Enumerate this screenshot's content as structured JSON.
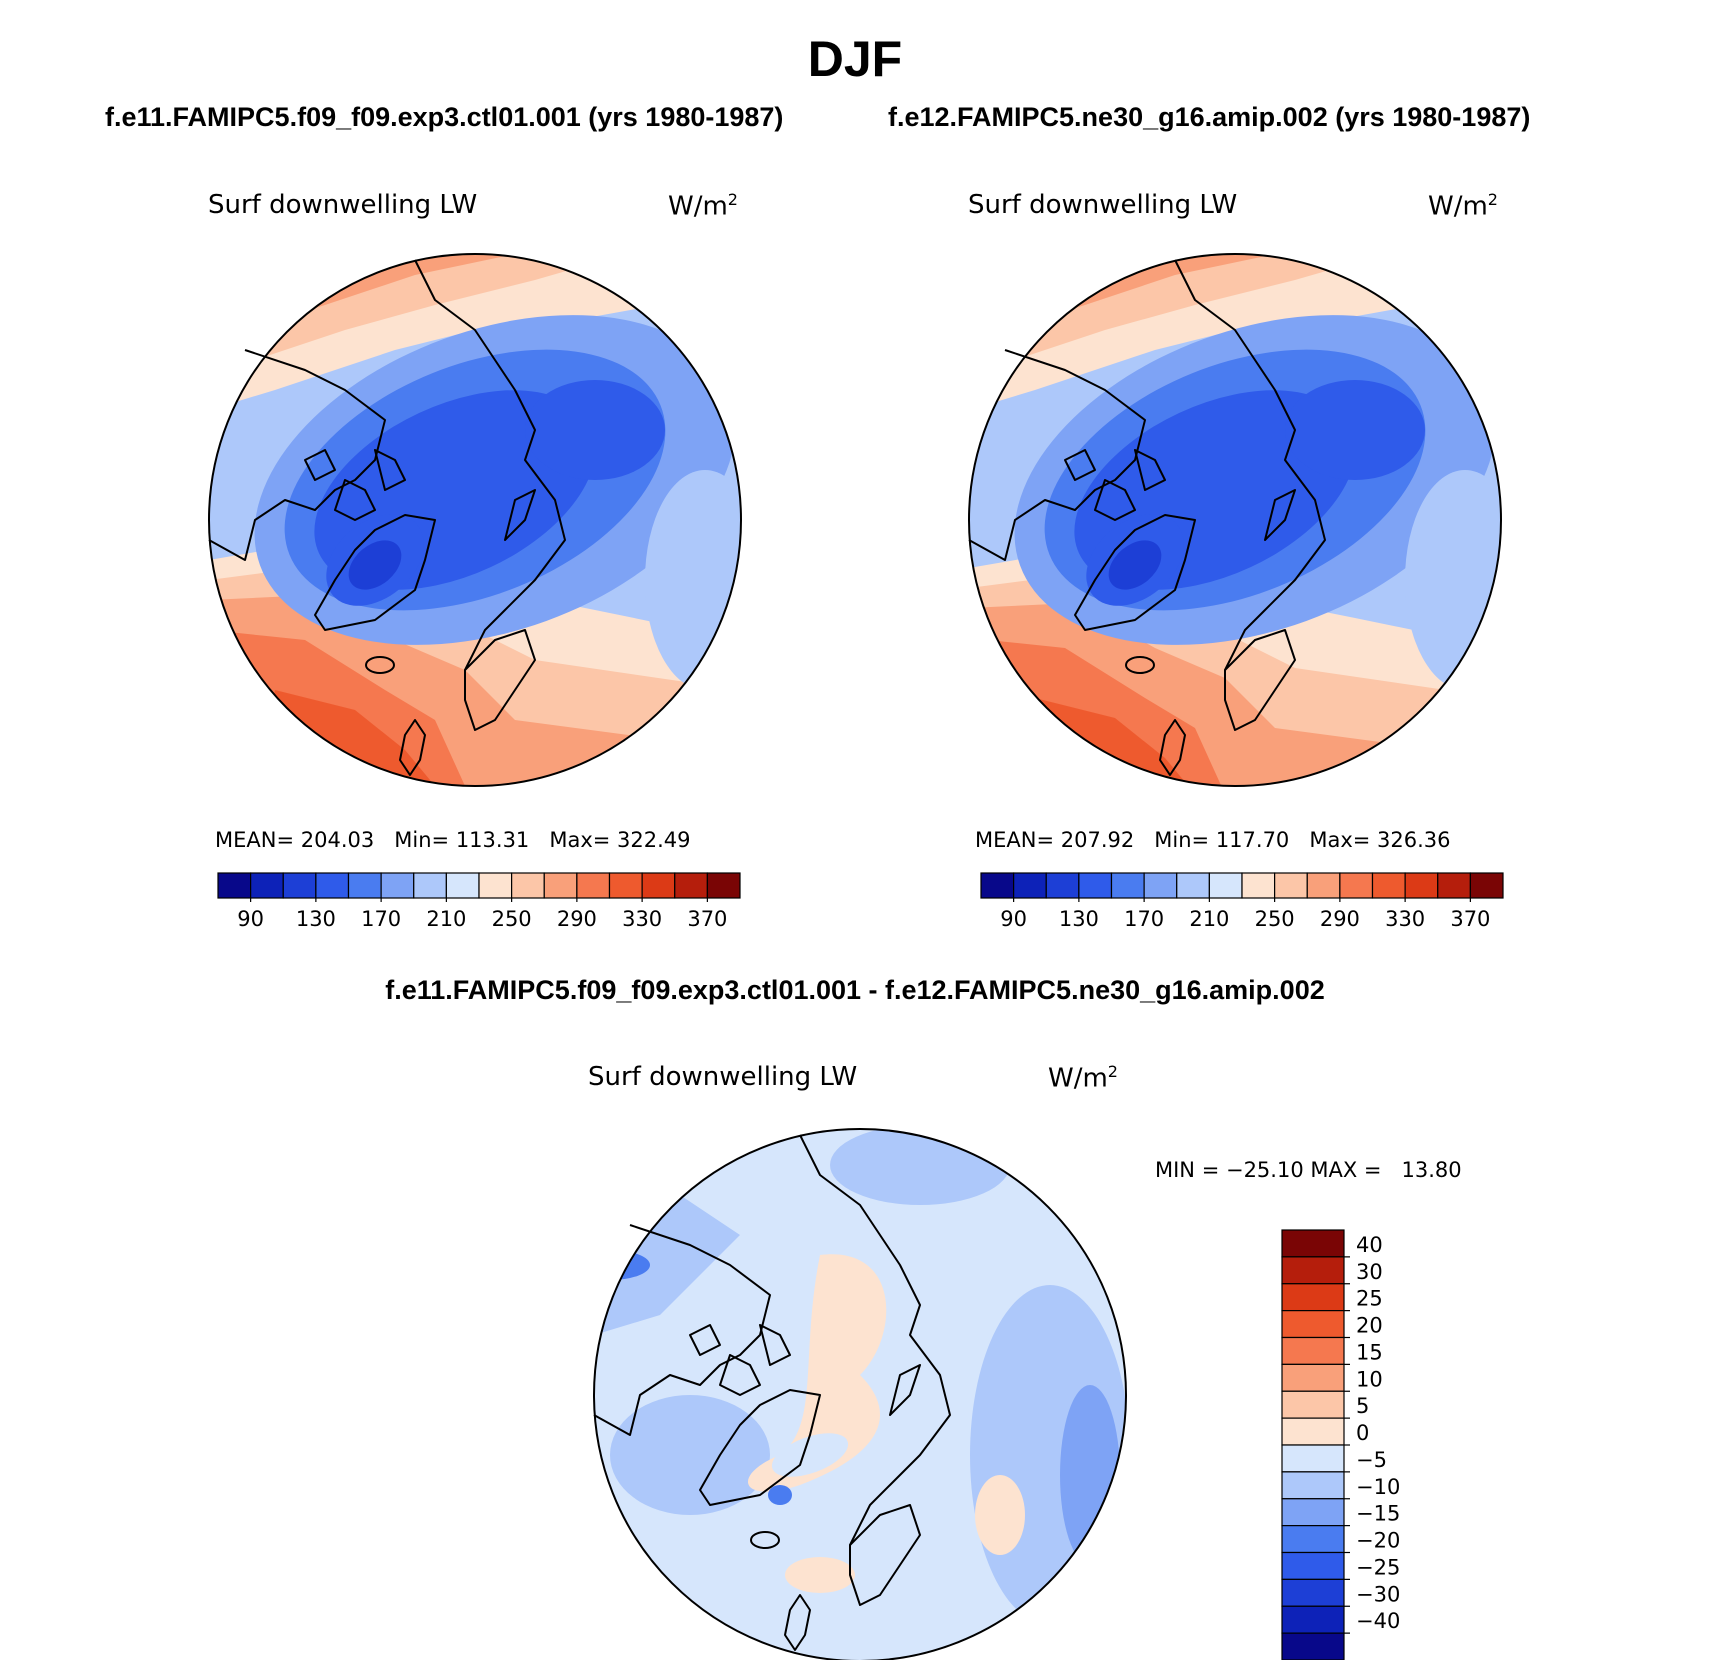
{
  "title": "DJF",
  "panels": [
    {
      "case": "f.e11.FAMIPC5.f09_f09.exp3.ctl01.001 (yrs 1980-1987)",
      "variable": "Surf downwelling LW",
      "units": "W/m",
      "units_sup": "2",
      "stats": {
        "mean_label": "MEAN=",
        "mean": "204.03",
        "min_label": "Min=",
        "min": "113.31",
        "max_label": "Max=",
        "max": "322.49"
      }
    },
    {
      "case": "f.e12.FAMIPC5.ne30_g16.amip.002 (yrs 1980-1987)",
      "variable": "Surf downwelling LW",
      "units": "W/m",
      "units_sup": "2",
      "stats": {
        "mean_label": "MEAN=",
        "mean": "207.92",
        "min_label": "Min=",
        "min": "117.70",
        "max_label": "Max=",
        "max": "326.36"
      }
    }
  ],
  "difference": {
    "title": "f.e11.FAMIPC5.f09_f09.exp3.ctl01.001 - f.e12.FAMIPC5.ne30_g16.amip.002",
    "variable": "Surf downwelling LW",
    "units": "W/m",
    "units_sup": "2",
    "stats_text": "MIN = −25.10 MAX =   13.80"
  },
  "chart_data": [
    {
      "type": "heatmap",
      "projection": "north polar stereographic",
      "title": "Surf downwelling LW",
      "units": "W/m2",
      "mean": 204.03,
      "min": 113.31,
      "max": 322.49,
      "colorbar": {
        "orientation": "horizontal",
        "labels": [
          "90",
          "130",
          "170",
          "210",
          "250",
          "290",
          "330",
          "370"
        ],
        "colors": [
          "#08088a",
          "#0d22b8",
          "#1d3fd6",
          "#2f5bea",
          "#4a7cf0",
          "#7ea3f5",
          "#adc8fa",
          "#d6e6fc",
          "#fde3d0",
          "#fcc6a8",
          "#f9a07a",
          "#f5784f",
          "#ee5a2e",
          "#dc3a16",
          "#b51e0c",
          "#7a0505"
        ]
      },
      "pattern": "low values (~110-170) over Greenland, Canadian Archipelago and central Arctic; high values (~290-330) over North Atlantic and North Pacific"
    },
    {
      "type": "heatmap",
      "projection": "north polar stereographic",
      "title": "Surf downwelling LW",
      "units": "W/m2",
      "mean": 207.92,
      "min": 117.7,
      "max": 326.36,
      "colorbar": {
        "orientation": "horizontal",
        "labels": [
          "90",
          "130",
          "170",
          "210",
          "250",
          "290",
          "330",
          "370"
        ],
        "colors": [
          "#08088a",
          "#0d22b8",
          "#1d3fd6",
          "#2f5bea",
          "#4a7cf0",
          "#7ea3f5",
          "#adc8fa",
          "#d6e6fc",
          "#fde3d0",
          "#fcc6a8",
          "#f9a07a",
          "#f5784f",
          "#ee5a2e",
          "#dc3a16",
          "#b51e0c",
          "#7a0505"
        ]
      },
      "pattern": "similar to first panel with slightly higher values"
    },
    {
      "type": "heatmap",
      "projection": "north polar stereographic",
      "title": "Surf downwelling LW",
      "units": "W/m2",
      "min": -25.1,
      "max": 13.8,
      "colorbar": {
        "orientation": "vertical",
        "labels": [
          "40",
          "30",
          "25",
          "20",
          "15",
          "10",
          "5",
          "0",
          "−5",
          "−10",
          "−15",
          "−20",
          "−25",
          "−30",
          "−40"
        ],
        "colors": [
          "#7a0505",
          "#b51e0c",
          "#dc3a16",
          "#ee5a2e",
          "#f5784f",
          "#f9a07a",
          "#fcc6a8",
          "#fde3d0",
          "#d6e6fc",
          "#adc8fa",
          "#7ea3f5",
          "#4a7cf0",
          "#2f5bea",
          "#1d3fd6",
          "#0d22b8",
          "#08088a"
        ]
      },
      "pattern": "mostly slightly negative (0 to -10) with small positive patches (0 to 5) over central Arctic and Greenland"
    }
  ]
}
